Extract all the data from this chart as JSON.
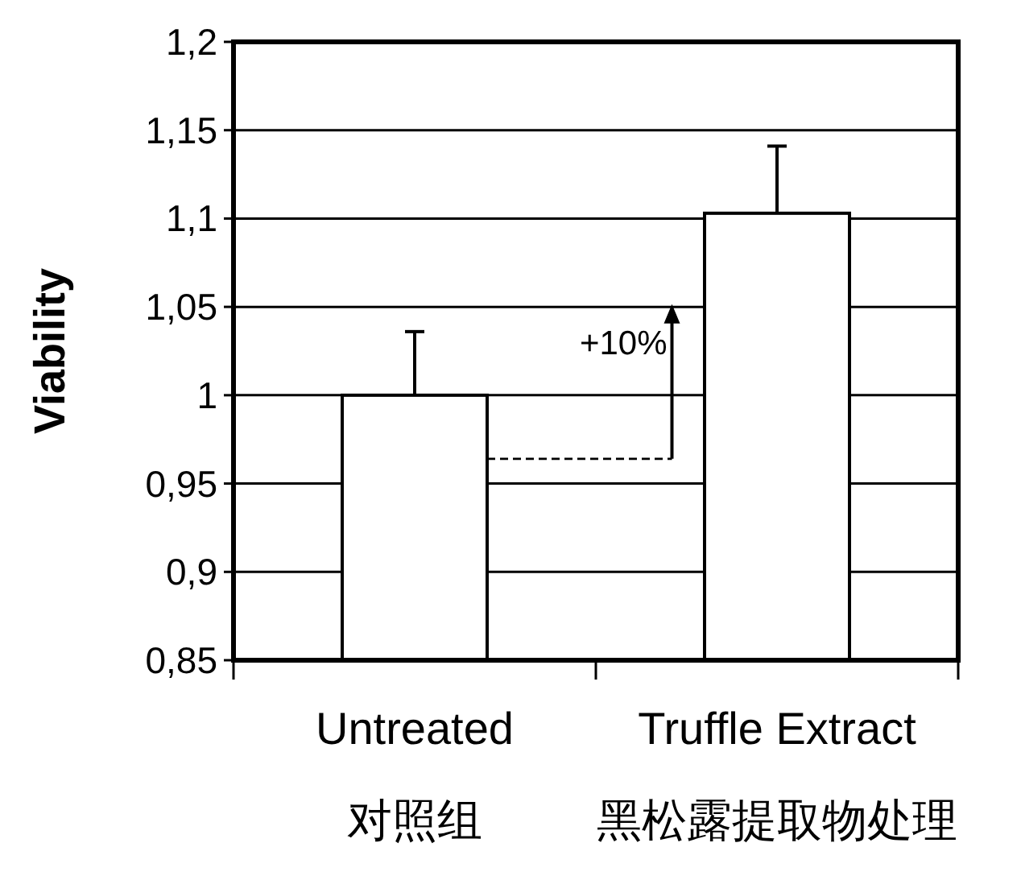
{
  "chart_data": {
    "type": "bar",
    "ylabel": "Viability",
    "categories": [
      "Untreated\n对照组",
      "Truffle Extract\n黑松露提取物处理"
    ],
    "values": [
      1.0,
      1.103
    ],
    "errors": [
      [
        1.0,
        1.036
      ],
      [
        1.103,
        1.141
      ]
    ],
    "color": "#ffffff",
    "ylim": [
      0.85,
      1.2
    ],
    "yticks": [
      {
        "value": 0.85,
        "label": "0,85"
      },
      {
        "value": 0.9,
        "label": "0,9"
      },
      {
        "value": 0.95,
        "label": "0,95"
      },
      {
        "value": 1,
        "label": "1"
      },
      {
        "value": 1.05,
        "label": "1,05"
      },
      {
        "value": 1.1,
        "label": "1,1"
      },
      {
        "value": 1.15,
        "label": "1,15"
      },
      {
        "value": 1.2,
        "label": "1,2"
      }
    ],
    "grid": "y",
    "ref_lines": [
      {
        "axis": "y",
        "value": 0.964,
        "line_style": "dashed"
      }
    ],
    "annotations": [
      {
        "text": "+10%",
        "y": 0.964
      }
    ]
  }
}
